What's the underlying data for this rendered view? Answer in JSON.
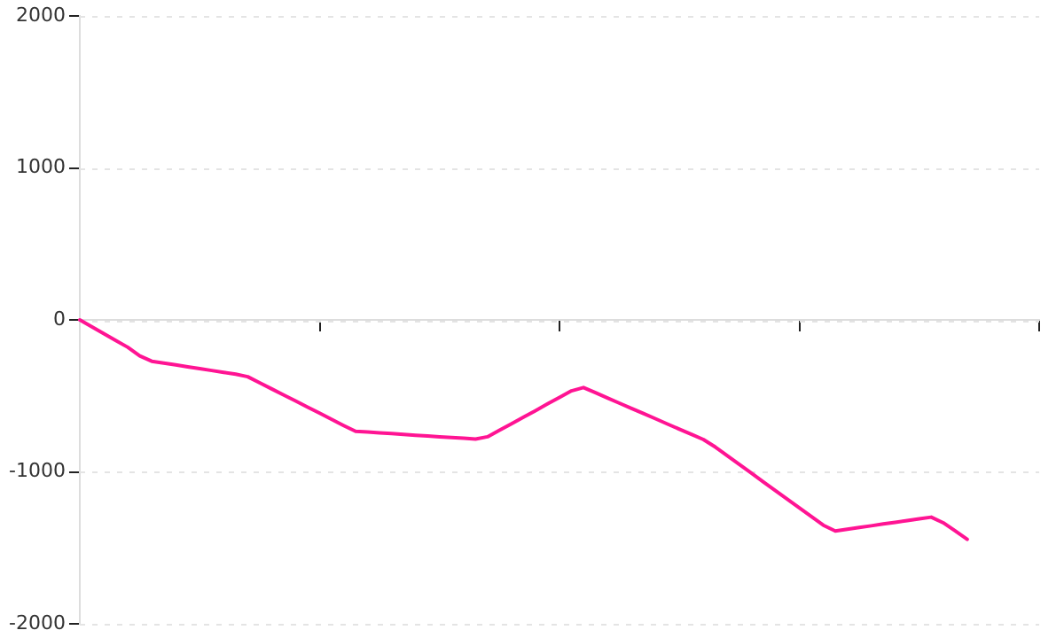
{
  "chart_data": {
    "type": "line",
    "categories": [
      null,
      null,
      null,
      null,
      null,
      null,
      null,
      null,
      null,
      null,
      null,
      null,
      null,
      null,
      null,
      null,
      null,
      null,
      null,
      null,
      null,
      null,
      null,
      null,
      null,
      null,
      null,
      null,
      null,
      null,
      null,
      null,
      null,
      null,
      null,
      null,
      null,
      null,
      null,
      null,
      null,
      null,
      null,
      null,
      null,
      null,
      null,
      null,
      null,
      null,
      null,
      null,
      null,
      null,
      null,
      null,
      null,
      null,
      null,
      null,
      null,
      null,
      null,
      null,
      null,
      null,
      null,
      null,
      null,
      null,
      null,
      null,
      null,
      null,
      null,
      null,
      null,
      null,
      null,
      null,
      null
    ],
    "series": [
      {
        "color": "#ff1493",
        "values": [
          0,
          -45,
          -90,
          -135,
          -180,
          -237,
          -272,
          -284,
          -296,
          -309,
          -321,
          -333,
          -345,
          -357,
          -374,
          -414,
          -454,
          -494,
          -534,
          -574,
          -614,
          -655,
          -695,
          -733,
          -738,
          -743,
          -748,
          -754,
          -759,
          -764,
          -769,
          -774,
          -779,
          -784,
          -769,
          -726,
          -683,
          -640,
          -597,
          -553,
          -510,
          -467,
          -445,
          -479,
          -514,
          -548,
          -582,
          -616,
          -650,
          -685,
          -719,
          -753,
          -787,
          -837,
          -894,
          -951,
          -1008,
          -1066,
          -1123,
          -1180,
          -1237,
          -1294,
          -1351,
          -1389,
          -1377,
          -1366,
          -1355,
          -1343,
          -1332,
          -1321,
          -1309,
          -1298,
          -1335,
          -1389,
          -1444,
          null,
          null,
          null,
          null,
          null,
          null
        ]
      }
    ],
    "ylim": [
      -2000,
      2000
    ],
    "yticks": [
      -2000,
      -1000,
      0,
      1000,
      2000
    ],
    "grid": "y",
    "legend": false,
    "tick_labels": "y",
    "marker": "none",
    "line_style": "solid"
  }
}
